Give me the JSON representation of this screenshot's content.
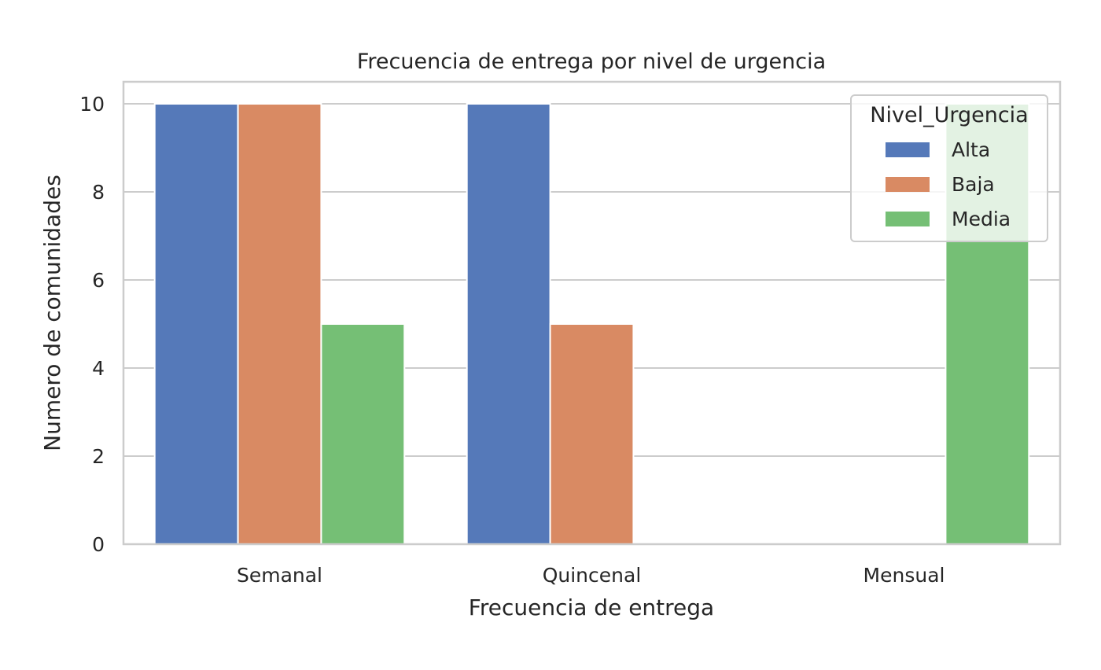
{
  "chart_data": {
    "type": "bar",
    "title": "Frecuencia de entrega por nivel de urgencia",
    "xlabel": "Frecuencia de entrega",
    "ylabel": "Numero de comunidades",
    "categories": [
      "Semanal",
      "Quincenal",
      "Mensual"
    ],
    "series": [
      {
        "name": "Alta",
        "values": [
          10,
          10,
          0
        ],
        "color": "#5579b9"
      },
      {
        "name": "Baja",
        "values": [
          10,
          5,
          0
        ],
        "color": "#d98a63"
      },
      {
        "name": "Media",
        "values": [
          5,
          0,
          10
        ],
        "color": "#75bf75"
      }
    ],
    "ylim": [
      0,
      10.5
    ],
    "yticks": [
      "0",
      "2",
      "4",
      "6",
      "8",
      "10"
    ],
    "grid": "horizontal",
    "legend": {
      "title": "Nivel_Urgencia",
      "placement": "top-right"
    }
  }
}
